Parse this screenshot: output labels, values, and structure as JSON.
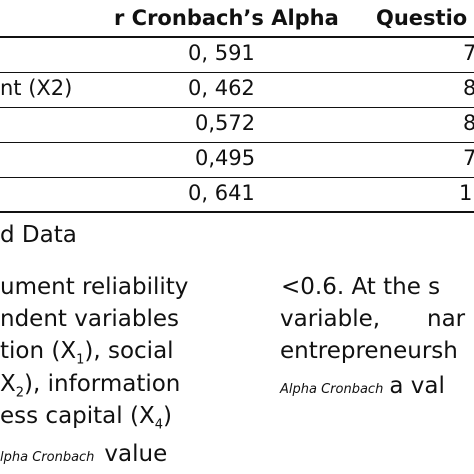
{
  "table": {
    "headers": [
      "r Cronbach’s Alpha",
      "Questio"
    ],
    "rows": [
      {
        "label": "",
        "alpha": "0, 591",
        "q": "7"
      },
      {
        "label": "nt (X2)",
        "alpha": "0, 462",
        "q": "8"
      },
      {
        "label": "",
        "alpha": "0,572",
        "q": "8"
      },
      {
        "label": "",
        "alpha": "0,495",
        "q": "7"
      },
      {
        "label": "",
        "alpha": "0, 641",
        "q": "1"
      }
    ]
  },
  "source": "d Data",
  "left_col": {
    "line1": "ument reliability",
    "line2": "ndent variables",
    "line3a": "tion (X",
    "line3b": "1",
    "line3c": "), social",
    "line4a": "X",
    "line4b": "2",
    "line4c": "), information",
    "line5a": "ess capital (X",
    "line5b": "4",
    "line5c": ")",
    "line6a": "lpha Cronbach",
    "line6b": "value"
  },
  "right_col": {
    "line1": "<0.6. At the s",
    "line2a": "variable,",
    "line2b": "nar",
    "line3": "entrepreneursh",
    "line4a": "Alpha Cronbach",
    "line4b": "a val"
  }
}
